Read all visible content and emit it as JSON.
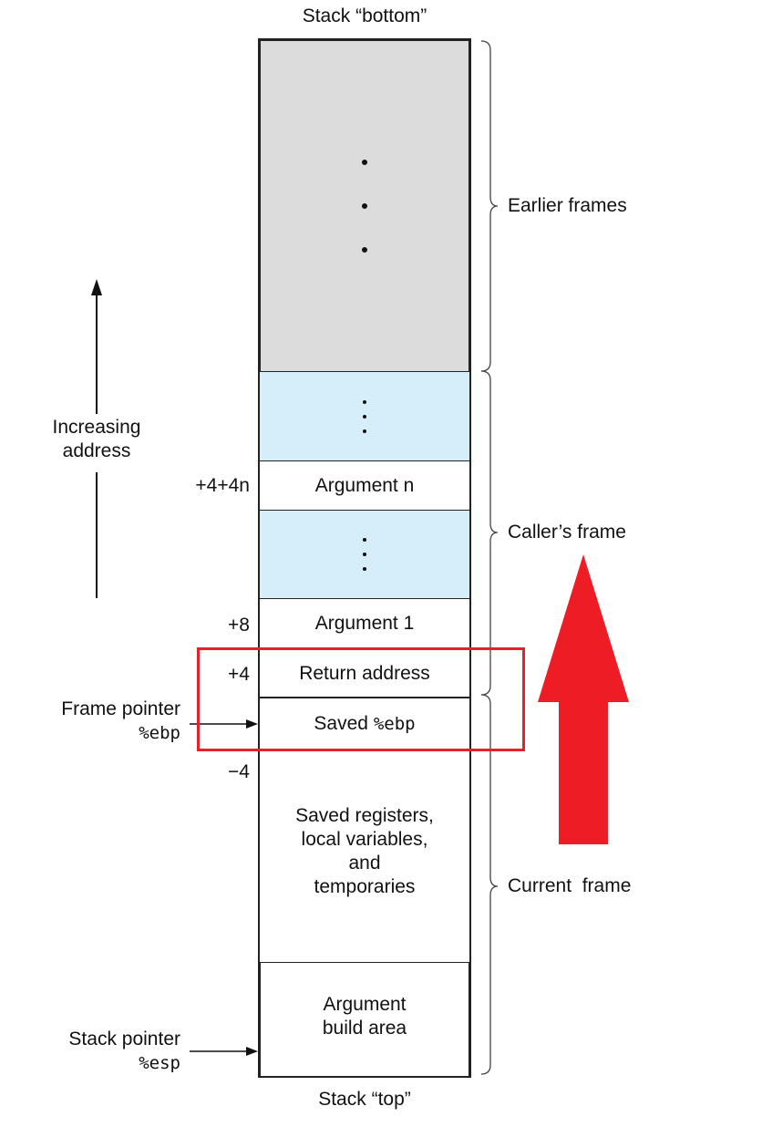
{
  "stack_bottom_label": "Stack “bottom”",
  "stack_top_label": "Stack “top”",
  "increasing_address": [
    "Increasing",
    "address"
  ],
  "cells": {
    "argument_n": "Argument n",
    "argument_1": "Argument 1",
    "return_address": "Return address",
    "saved_ebp_prefix": "Saved ",
    "saved_ebp_reg": "%ebp",
    "saved_registers": [
      "Saved registers,",
      "local variables,",
      "and",
      "temporaries"
    ],
    "argument_build": [
      "Argument",
      "build area"
    ]
  },
  "offsets": {
    "arg_n": "+4+4n",
    "arg_1": "+8",
    "ret": "+4",
    "minus4": "−4"
  },
  "pointers": {
    "frame_pointer_label": "Frame pointer",
    "frame_pointer_reg": "%ebp",
    "stack_pointer_label": "Stack pointer",
    "stack_pointer_reg": "%esp"
  },
  "frames": {
    "earlier": "Earlier frames",
    "caller": "Caller’s frame",
    "current": "Current  frame"
  },
  "colors": {
    "earlier_fill": "#dcdcdc",
    "caller_fill": "#d6eef9",
    "highlight_box": "#e8202a",
    "big_arrow": "#ee1c25"
  }
}
